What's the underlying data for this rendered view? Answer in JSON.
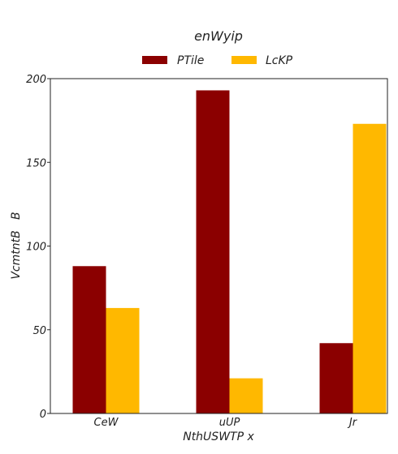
{
  "chart_data": {
    "type": "bar",
    "title": "enWyip",
    "xlabel": "NthUSWTP x",
    "ylabel": "VcmtntB   B",
    "categories": [
      "CeW",
      "uUP",
      "Jr"
    ],
    "series": [
      {
        "name": "PTile",
        "values": [
          88,
          193,
          42
        ],
        "color": "#8b0000"
      },
      {
        "name": "LcKP",
        "values": [
          63,
          21,
          173
        ],
        "color": "#ffb800"
      }
    ],
    "ylim": [
      0,
      200
    ],
    "yticks": [
      0,
      50,
      100,
      150,
      200
    ],
    "grid": false,
    "legend": "top-center"
  }
}
